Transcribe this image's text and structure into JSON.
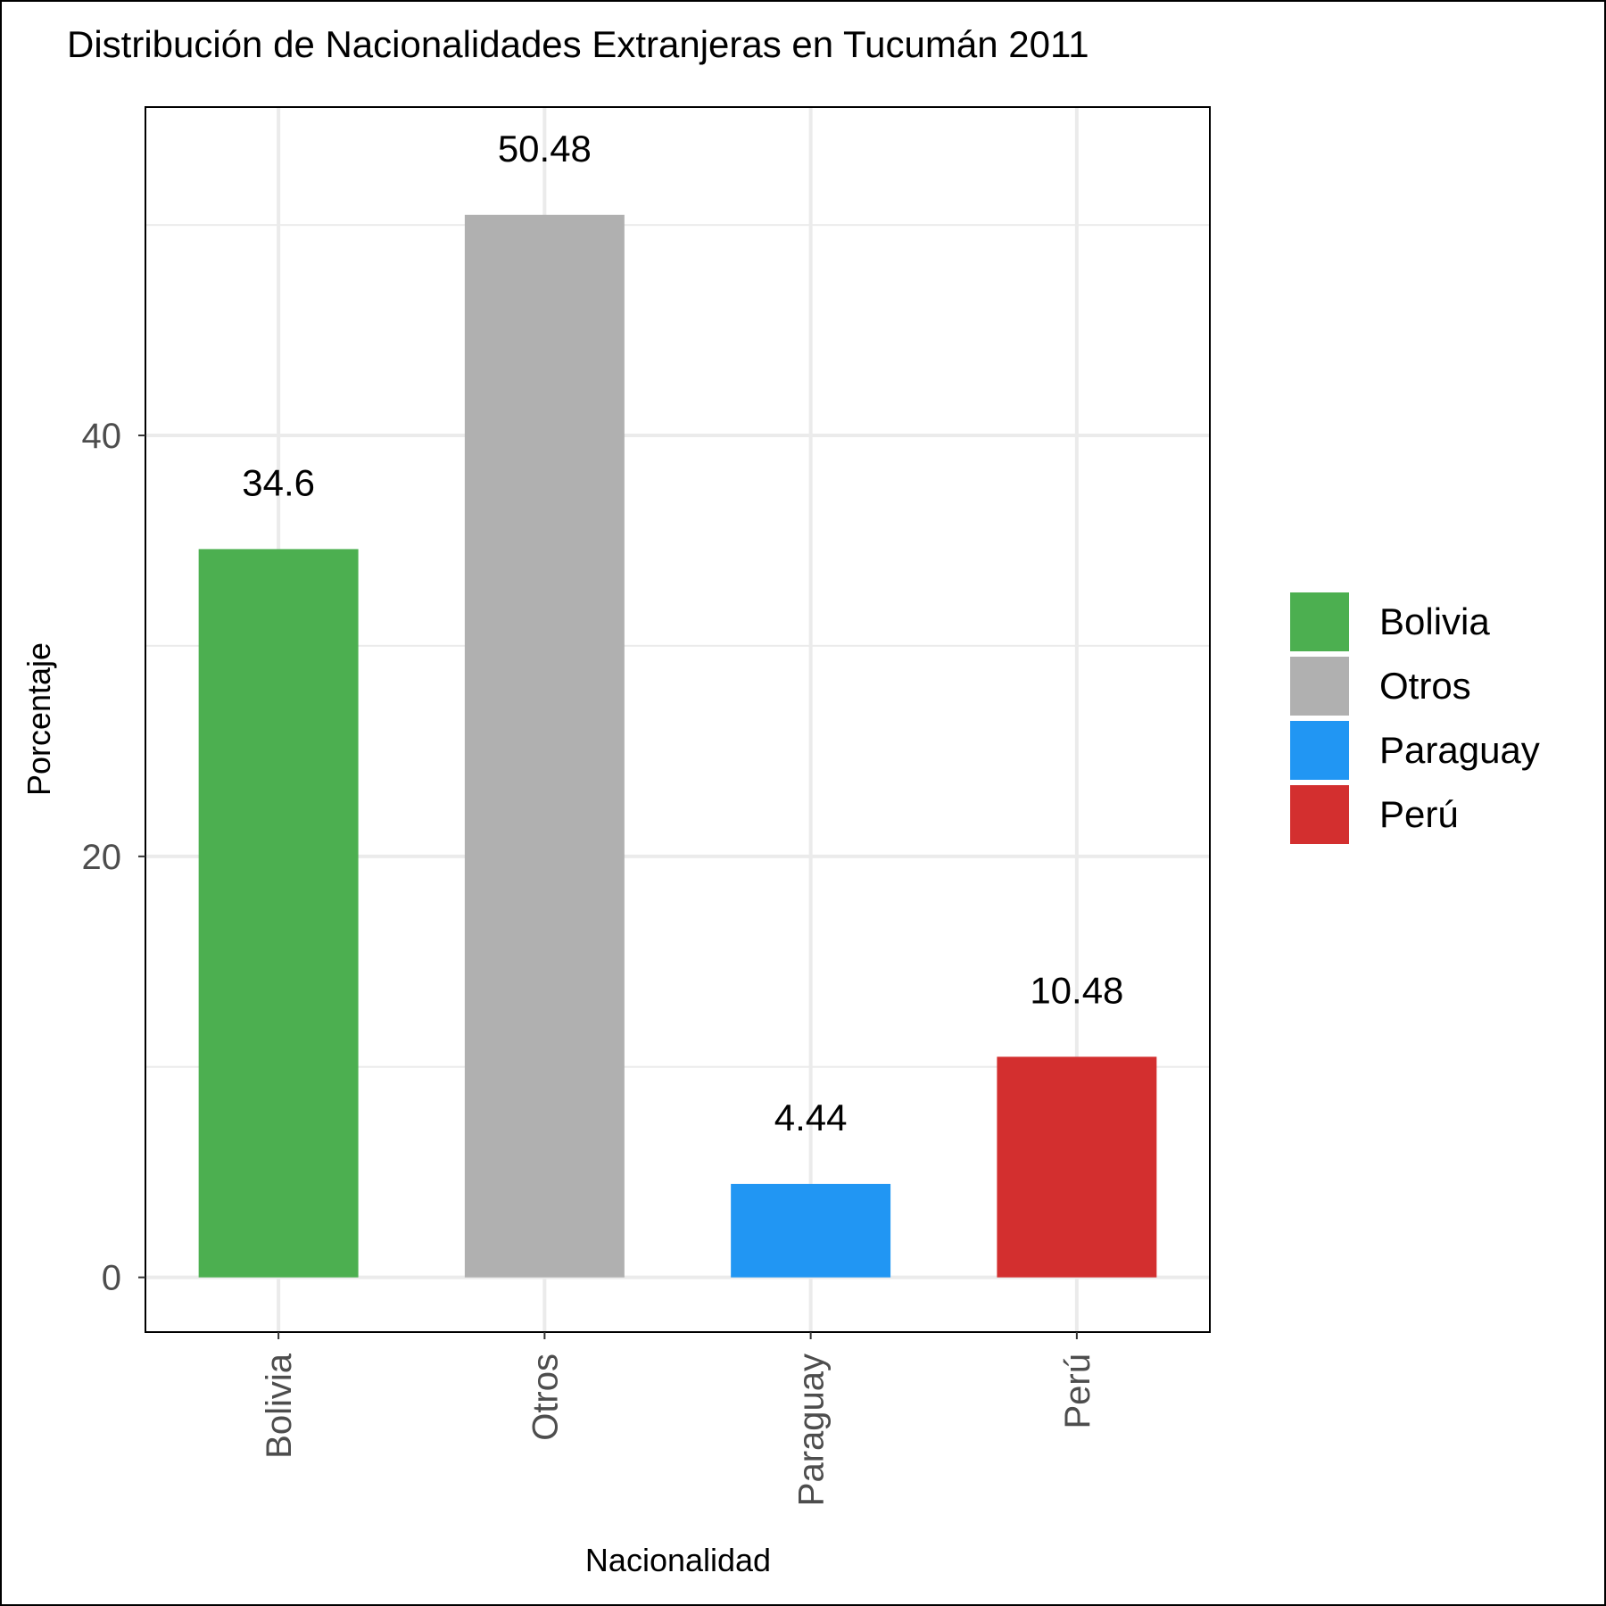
{
  "chart_data": {
    "type": "bar",
    "title": "Distribución de Nacionalidades Extranjeras en Tucumán 2011",
    "xlabel": "Nacionalidad",
    "ylabel": "Porcentaje",
    "categories": [
      "Bolivia",
      "Otros",
      "Paraguay",
      "Perú"
    ],
    "values": [
      34.6,
      50.48,
      4.44,
      10.48
    ],
    "value_labels": [
      "34.6",
      "50.48",
      "4.44",
      "10.48"
    ],
    "colors": [
      "#4caf50",
      "#b0b0b0",
      "#2196f3",
      "#d32f2f"
    ],
    "y_ticks": [
      0,
      20,
      40
    ],
    "y_tick_labels": [
      "0",
      "20",
      "40"
    ],
    "ylim": [
      -2.6,
      55.6
    ],
    "grid": true,
    "legend": {
      "position": "right",
      "entries": [
        "Bolivia",
        "Otros",
        "Paraguay",
        "Perú"
      ]
    }
  }
}
